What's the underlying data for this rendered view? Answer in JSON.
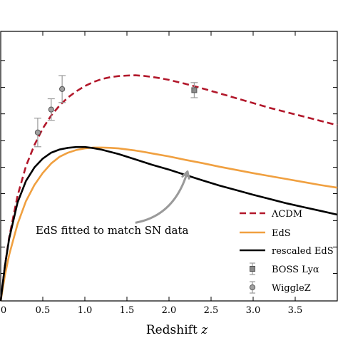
{
  "chart_data": {
    "type": "line",
    "xlabel": "Redshift",
    "xlabel_var": "z",
    "xlim": [
      0,
      4.0
    ],
    "ylim": [
      0,
      1.0
    ],
    "x_ticks": [
      0,
      0.5,
      1.0,
      1.5,
      2.0,
      2.5,
      3.0,
      3.5
    ],
    "x_tick_labels": [
      "0",
      "0.5",
      "1.0",
      "1.5",
      "2.0",
      "2.5",
      "3.0",
      "3.5"
    ],
    "y_ticks": [
      0.102,
      0.2,
      0.298,
      0.398,
      0.496,
      0.594,
      0.694,
      0.792,
      0.892
    ],
    "legend_position": "lower-right",
    "colors": {
      "lcdm": "#b2182b",
      "eds": "#f0a040",
      "rescaled": "#000000",
      "errorbar": "#9a9a9a"
    },
    "series": [
      {
        "name": "ΛCDM",
        "style": "dashed",
        "color": "#b2182b",
        "x": [
          0.0,
          0.05,
          0.1,
          0.2,
          0.3,
          0.4,
          0.5,
          0.6,
          0.7,
          0.8,
          0.9,
          1.0,
          1.1,
          1.2,
          1.3,
          1.4,
          1.5,
          1.6,
          1.7,
          1.8,
          1.9,
          2.0,
          2.2,
          2.4,
          2.6,
          2.8,
          3.0,
          3.2,
          3.4,
          3.6,
          3.8,
          4.0
        ],
        "y": [
          0.0,
          0.13,
          0.235,
          0.39,
          0.5,
          0.578,
          0.64,
          0.688,
          0.725,
          0.755,
          0.778,
          0.797,
          0.812,
          0.823,
          0.83,
          0.834,
          0.836,
          0.837,
          0.835,
          0.831,
          0.826,
          0.82,
          0.805,
          0.788,
          0.77,
          0.752,
          0.734,
          0.716,
          0.7,
          0.684,
          0.668,
          0.652
        ]
      },
      {
        "name": "EdS",
        "style": "solid",
        "color": "#f0a040",
        "x": [
          0.0,
          0.05,
          0.1,
          0.2,
          0.3,
          0.4,
          0.5,
          0.6,
          0.7,
          0.8,
          0.9,
          1.0,
          1.1,
          1.2,
          1.3,
          1.4,
          1.5,
          1.6,
          1.7,
          1.8,
          2.0,
          2.2,
          2.4,
          2.6,
          2.8,
          3.0,
          3.2,
          3.4,
          3.6,
          3.8,
          4.0
        ],
        "y": [
          0.0,
          0.095,
          0.17,
          0.285,
          0.37,
          0.43,
          0.475,
          0.51,
          0.535,
          0.55,
          0.56,
          0.566,
          0.569,
          0.569,
          0.568,
          0.566,
          0.562,
          0.558,
          0.553,
          0.547,
          0.536,
          0.523,
          0.511,
          0.498,
          0.486,
          0.474,
          0.463,
          0.452,
          0.441,
          0.43,
          0.42
        ]
      },
      {
        "name": "rescaled EdS",
        "style": "solid",
        "color": "#000000",
        "x": [
          0.0,
          0.05,
          0.1,
          0.2,
          0.3,
          0.4,
          0.5,
          0.6,
          0.7,
          0.8,
          0.9,
          1.0,
          1.1,
          1.2,
          1.4,
          1.6,
          1.8,
          2.0,
          2.2,
          2.4,
          2.6,
          2.8,
          3.0,
          3.2,
          3.4,
          3.6,
          3.8,
          4.0
        ],
        "y": [
          0.0,
          0.13,
          0.23,
          0.365,
          0.445,
          0.495,
          0.528,
          0.55,
          0.562,
          0.568,
          0.571,
          0.571,
          0.567,
          0.561,
          0.545,
          0.525,
          0.505,
          0.487,
          0.467,
          0.447,
          0.428,
          0.411,
          0.394,
          0.378,
          0.362,
          0.348,
          0.334,
          0.32
        ]
      }
    ],
    "points": [
      {
        "name": "BOSS Lyα",
        "marker": "square",
        "x": [
          2.3
        ],
        "y": [
          0.782
        ],
        "yerr": [
          0.028
        ]
      },
      {
        "name": "WiggleZ",
        "marker": "circle",
        "x": [
          0.44,
          0.6,
          0.73
        ],
        "y": [
          0.625,
          0.71,
          0.786
        ],
        "yerr": [
          0.053,
          0.04,
          0.05
        ]
      }
    ],
    "annotation": {
      "text": "EdS fitted to match SN data",
      "arrow_from": [
        1.6,
        0.29
      ],
      "arrow_to": [
        2.22,
        0.48
      ]
    }
  }
}
